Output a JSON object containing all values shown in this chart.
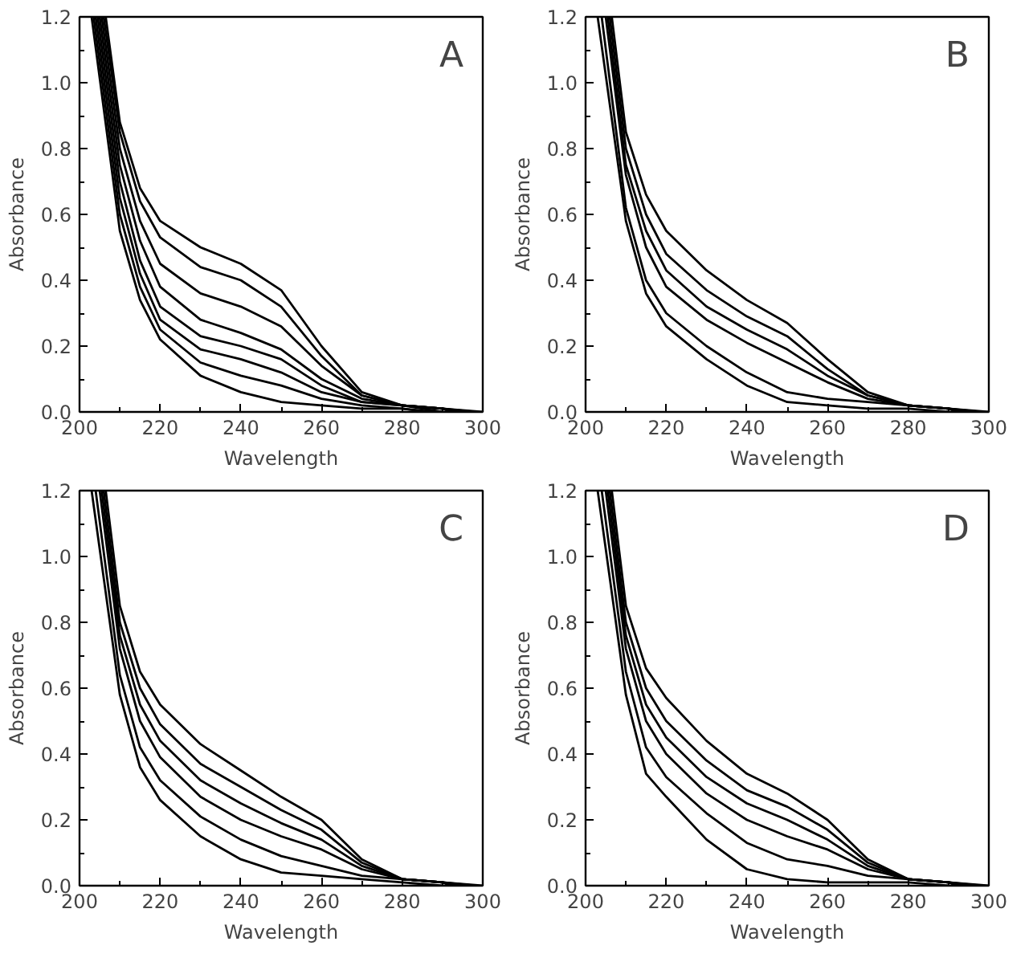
{
  "chart_data": [
    {
      "type": "line",
      "xlabel": "Wavelength",
      "ylabel": "Absorbance",
      "annotations": [
        "A"
      ],
      "grid": false,
      "marker": "none",
      "line_style": "solid",
      "xlim": [
        200,
        300
      ],
      "ylim": [
        0,
        1.2
      ],
      "xticks": [
        200,
        220,
        240,
        260,
        280,
        300
      ],
      "yticks": [
        {
          "value": 0,
          "label": "0.0"
        },
        {
          "value": 0.2,
          "label": "0.2"
        },
        {
          "value": 0.4,
          "label": "0.4"
        },
        {
          "value": 0.6,
          "label": "0.6"
        },
        {
          "value": 0.8,
          "label": "0.8"
        },
        {
          "value": 1.0,
          "label": "1.0"
        },
        {
          "value": 1.2,
          "label": "1.2"
        }
      ],
      "series": [
        {
          "color": "#000000",
          "x": [
            206.5,
            210,
            215,
            220,
            230,
            240,
            250,
            260,
            270,
            280,
            290,
            300
          ],
          "values": [
            1.2,
            0.88,
            0.68,
            0.58,
            0.5,
            0.45,
            0.37,
            0.2,
            0.06,
            0.02,
            0.01,
            0.0
          ]
        },
        {
          "color": "#000000",
          "x": [
            206,
            210,
            215,
            220,
            230,
            240,
            250,
            260,
            270,
            280,
            290,
            298
          ],
          "values": [
            1.2,
            0.85,
            0.64,
            0.53,
            0.44,
            0.4,
            0.32,
            0.17,
            0.05,
            0.02,
            0.01,
            0.0
          ]
        },
        {
          "color": "#000000",
          "x": [
            205.5,
            210,
            215,
            220,
            230,
            240,
            250,
            260,
            270,
            280,
            290,
            296
          ],
          "values": [
            1.2,
            0.8,
            0.58,
            0.45,
            0.36,
            0.32,
            0.26,
            0.14,
            0.05,
            0.02,
            0.01,
            0.0
          ]
        },
        {
          "color": "#000000",
          "x": [
            205,
            210,
            215,
            220,
            230,
            240,
            250,
            260,
            270,
            280,
            290,
            294
          ],
          "values": [
            1.2,
            0.75,
            0.52,
            0.38,
            0.28,
            0.24,
            0.19,
            0.1,
            0.04,
            0.02,
            0.01,
            0.0
          ]
        },
        {
          "color": "#000000",
          "x": [
            204.5,
            210,
            215,
            220,
            230,
            240,
            250,
            260,
            270,
            280,
            290,
            292
          ],
          "values": [
            1.2,
            0.7,
            0.46,
            0.32,
            0.23,
            0.2,
            0.16,
            0.08,
            0.03,
            0.02,
            0.01,
            0.0
          ]
        },
        {
          "color": "#000000",
          "x": [
            204,
            210,
            215,
            220,
            230,
            240,
            250,
            260,
            270,
            280,
            290
          ],
          "values": [
            1.2,
            0.65,
            0.42,
            0.28,
            0.19,
            0.16,
            0.12,
            0.06,
            0.03,
            0.02,
            0.0
          ]
        },
        {
          "color": "#000000",
          "x": [
            203.5,
            210,
            215,
            220,
            230,
            240,
            250,
            260,
            270,
            280,
            288
          ],
          "values": [
            1.2,
            0.6,
            0.38,
            0.25,
            0.15,
            0.11,
            0.08,
            0.04,
            0.02,
            0.01,
            0.0
          ]
        },
        {
          "color": "#000000",
          "x": [
            203,
            210,
            215,
            220,
            230,
            240,
            250,
            260,
            270,
            280,
            286
          ],
          "values": [
            1.2,
            0.55,
            0.34,
            0.22,
            0.11,
            0.06,
            0.03,
            0.02,
            0.01,
            0.01,
            0.0
          ]
        }
      ]
    },
    {
      "type": "line",
      "xlabel": "Wavelength",
      "ylabel": "Absorbance",
      "annotations": [
        "B"
      ],
      "grid": false,
      "marker": "none",
      "line_style": "solid",
      "xlim": [
        200,
        300
      ],
      "ylim": [
        0,
        1.2
      ],
      "xticks": [
        200,
        220,
        240,
        260,
        280,
        300
      ],
      "yticks": [
        {
          "value": 0,
          "label": "0.0"
        },
        {
          "value": 0.2,
          "label": "0.2"
        },
        {
          "value": 0.4,
          "label": "0.4"
        },
        {
          "value": 0.6,
          "label": "0.6"
        },
        {
          "value": 0.8,
          "label": "0.8"
        },
        {
          "value": 1.0,
          "label": "1.0"
        },
        {
          "value": 1.2,
          "label": "1.2"
        }
      ],
      "series": [
        {
          "color": "#000000",
          "x": [
            206.5,
            210,
            215,
            220,
            230,
            240,
            250,
            260,
            270,
            280,
            290,
            300
          ],
          "values": [
            1.2,
            0.85,
            0.66,
            0.55,
            0.43,
            0.34,
            0.27,
            0.16,
            0.06,
            0.02,
            0.01,
            0.0
          ]
        },
        {
          "color": "#000000",
          "x": [
            206,
            210,
            215,
            220,
            230,
            240,
            250,
            260,
            270,
            280,
            290,
            298
          ],
          "values": [
            1.2,
            0.8,
            0.6,
            0.48,
            0.37,
            0.29,
            0.23,
            0.13,
            0.05,
            0.02,
            0.01,
            0.0
          ]
        },
        {
          "color": "#000000",
          "x": [
            205.5,
            210,
            215,
            220,
            230,
            240,
            250,
            260,
            270,
            280,
            290,
            296
          ],
          "values": [
            1.2,
            0.75,
            0.55,
            0.43,
            0.32,
            0.25,
            0.19,
            0.11,
            0.05,
            0.02,
            0.01,
            0.0
          ]
        },
        {
          "color": "#000000",
          "x": [
            205,
            210,
            215,
            220,
            230,
            240,
            250,
            260,
            270,
            280,
            290,
            294
          ],
          "values": [
            1.2,
            0.72,
            0.5,
            0.38,
            0.28,
            0.21,
            0.15,
            0.09,
            0.04,
            0.02,
            0.01,
            0.0
          ]
        },
        {
          "color": "#000000",
          "x": [
            204,
            210,
            215,
            220,
            230,
            240,
            250,
            260,
            270,
            280,
            290,
            292
          ],
          "values": [
            1.2,
            0.62,
            0.4,
            0.3,
            0.2,
            0.12,
            0.06,
            0.04,
            0.03,
            0.02,
            0.01,
            0.0
          ]
        },
        {
          "color": "#000000",
          "x": [
            203,
            210,
            215,
            220,
            230,
            240,
            250,
            260,
            270,
            280,
            290
          ],
          "values": [
            1.2,
            0.58,
            0.36,
            0.26,
            0.16,
            0.08,
            0.03,
            0.02,
            0.01,
            0.01,
            0.0
          ]
        }
      ]
    },
    {
      "type": "line",
      "xlabel": "Wavelength",
      "ylabel": "Absorbance",
      "annotations": [
        "C"
      ],
      "grid": false,
      "marker": "none",
      "line_style": "solid",
      "xlim": [
        200,
        300
      ],
      "ylim": [
        0,
        1.2
      ],
      "xticks": [
        200,
        220,
        240,
        260,
        280,
        300
      ],
      "yticks": [
        {
          "value": 0,
          "label": "0.0"
        },
        {
          "value": 0.2,
          "label": "0.2"
        },
        {
          "value": 0.4,
          "label": "0.4"
        },
        {
          "value": 0.6,
          "label": "0.6"
        },
        {
          "value": 0.8,
          "label": "0.8"
        },
        {
          "value": 1.0,
          "label": "1.0"
        },
        {
          "value": 1.2,
          "label": "1.2"
        }
      ],
      "series": [
        {
          "color": "#000000",
          "x": [
            206.5,
            210,
            215,
            220,
            230,
            240,
            250,
            260,
            270,
            280,
            290,
            300
          ],
          "values": [
            1.2,
            0.85,
            0.65,
            0.55,
            0.43,
            0.35,
            0.27,
            0.2,
            0.08,
            0.02,
            0.01,
            0.0
          ]
        },
        {
          "color": "#000000",
          "x": [
            206,
            210,
            215,
            220,
            230,
            240,
            250,
            260,
            270,
            280,
            290,
            298
          ],
          "values": [
            1.2,
            0.8,
            0.6,
            0.49,
            0.37,
            0.3,
            0.23,
            0.17,
            0.07,
            0.02,
            0.01,
            0.0
          ]
        },
        {
          "color": "#000000",
          "x": [
            205.5,
            210,
            215,
            220,
            230,
            240,
            250,
            260,
            270,
            280,
            290,
            296
          ],
          "values": [
            1.2,
            0.76,
            0.55,
            0.44,
            0.32,
            0.25,
            0.19,
            0.14,
            0.06,
            0.02,
            0.01,
            0.0
          ]
        },
        {
          "color": "#000000",
          "x": [
            205,
            210,
            215,
            220,
            230,
            240,
            250,
            260,
            270,
            280,
            290,
            294
          ],
          "values": [
            1.2,
            0.72,
            0.5,
            0.39,
            0.27,
            0.2,
            0.15,
            0.11,
            0.05,
            0.02,
            0.01,
            0.0
          ]
        },
        {
          "color": "#000000",
          "x": [
            204,
            210,
            215,
            220,
            230,
            240,
            250,
            260,
            270,
            280,
            290,
            292
          ],
          "values": [
            1.2,
            0.64,
            0.42,
            0.32,
            0.21,
            0.14,
            0.09,
            0.06,
            0.03,
            0.02,
            0.01,
            0.0
          ]
        },
        {
          "color": "#000000",
          "x": [
            203,
            210,
            215,
            220,
            230,
            240,
            250,
            260,
            270,
            280,
            290
          ],
          "values": [
            1.2,
            0.58,
            0.36,
            0.26,
            0.15,
            0.08,
            0.04,
            0.03,
            0.02,
            0.01,
            0.0
          ]
        }
      ]
    },
    {
      "type": "line",
      "xlabel": "Wavelength",
      "ylabel": "Absorbance",
      "annotations": [
        "D"
      ],
      "grid": false,
      "marker": "none",
      "line_style": "solid",
      "xlim": [
        200,
        300
      ],
      "ylim": [
        0,
        1.2
      ],
      "xticks": [
        200,
        220,
        240,
        260,
        280,
        300
      ],
      "yticks": [
        {
          "value": 0,
          "label": "0.0"
        },
        {
          "value": 0.2,
          "label": "0.2"
        },
        {
          "value": 0.4,
          "label": "0.4"
        },
        {
          "value": 0.6,
          "label": "0.6"
        },
        {
          "value": 0.8,
          "label": "0.8"
        },
        {
          "value": 1.0,
          "label": "1.0"
        },
        {
          "value": 1.2,
          "label": "1.2"
        }
      ],
      "series": [
        {
          "color": "#000000",
          "x": [
            206.5,
            210,
            215,
            220,
            230,
            240,
            250,
            260,
            270,
            280,
            290,
            300
          ],
          "values": [
            1.2,
            0.85,
            0.66,
            0.57,
            0.44,
            0.34,
            0.28,
            0.2,
            0.08,
            0.02,
            0.01,
            0.0
          ]
        },
        {
          "color": "#000000",
          "x": [
            206,
            210,
            215,
            220,
            230,
            240,
            250,
            260,
            270,
            280,
            290,
            298
          ],
          "values": [
            1.2,
            0.8,
            0.6,
            0.5,
            0.38,
            0.29,
            0.24,
            0.17,
            0.07,
            0.02,
            0.01,
            0.0
          ]
        },
        {
          "color": "#000000",
          "x": [
            205.5,
            210,
            215,
            220,
            230,
            240,
            250,
            260,
            270,
            280,
            290,
            296
          ],
          "values": [
            1.2,
            0.76,
            0.55,
            0.45,
            0.33,
            0.25,
            0.2,
            0.14,
            0.06,
            0.02,
            0.01,
            0.0
          ]
        },
        {
          "color": "#000000",
          "x": [
            205,
            210,
            215,
            220,
            230,
            240,
            250,
            260,
            270,
            280,
            290,
            294
          ],
          "values": [
            1.2,
            0.72,
            0.5,
            0.4,
            0.28,
            0.2,
            0.15,
            0.11,
            0.05,
            0.02,
            0.01,
            0.0
          ]
        },
        {
          "color": "#000000",
          "x": [
            204,
            210,
            215,
            220,
            230,
            240,
            250,
            260,
            270,
            280,
            290,
            292
          ],
          "values": [
            1.2,
            0.65,
            0.42,
            0.33,
            0.22,
            0.13,
            0.08,
            0.06,
            0.03,
            0.02,
            0.01,
            0.0
          ]
        },
        {
          "color": "#000000",
          "x": [
            203,
            210,
            215,
            220,
            230,
            240,
            250,
            260,
            270,
            280,
            290
          ],
          "values": [
            1.2,
            0.58,
            0.34,
            0.27,
            0.14,
            0.05,
            0.02,
            0.01,
            0.01,
            0.01,
            0.0
          ]
        }
      ]
    }
  ]
}
